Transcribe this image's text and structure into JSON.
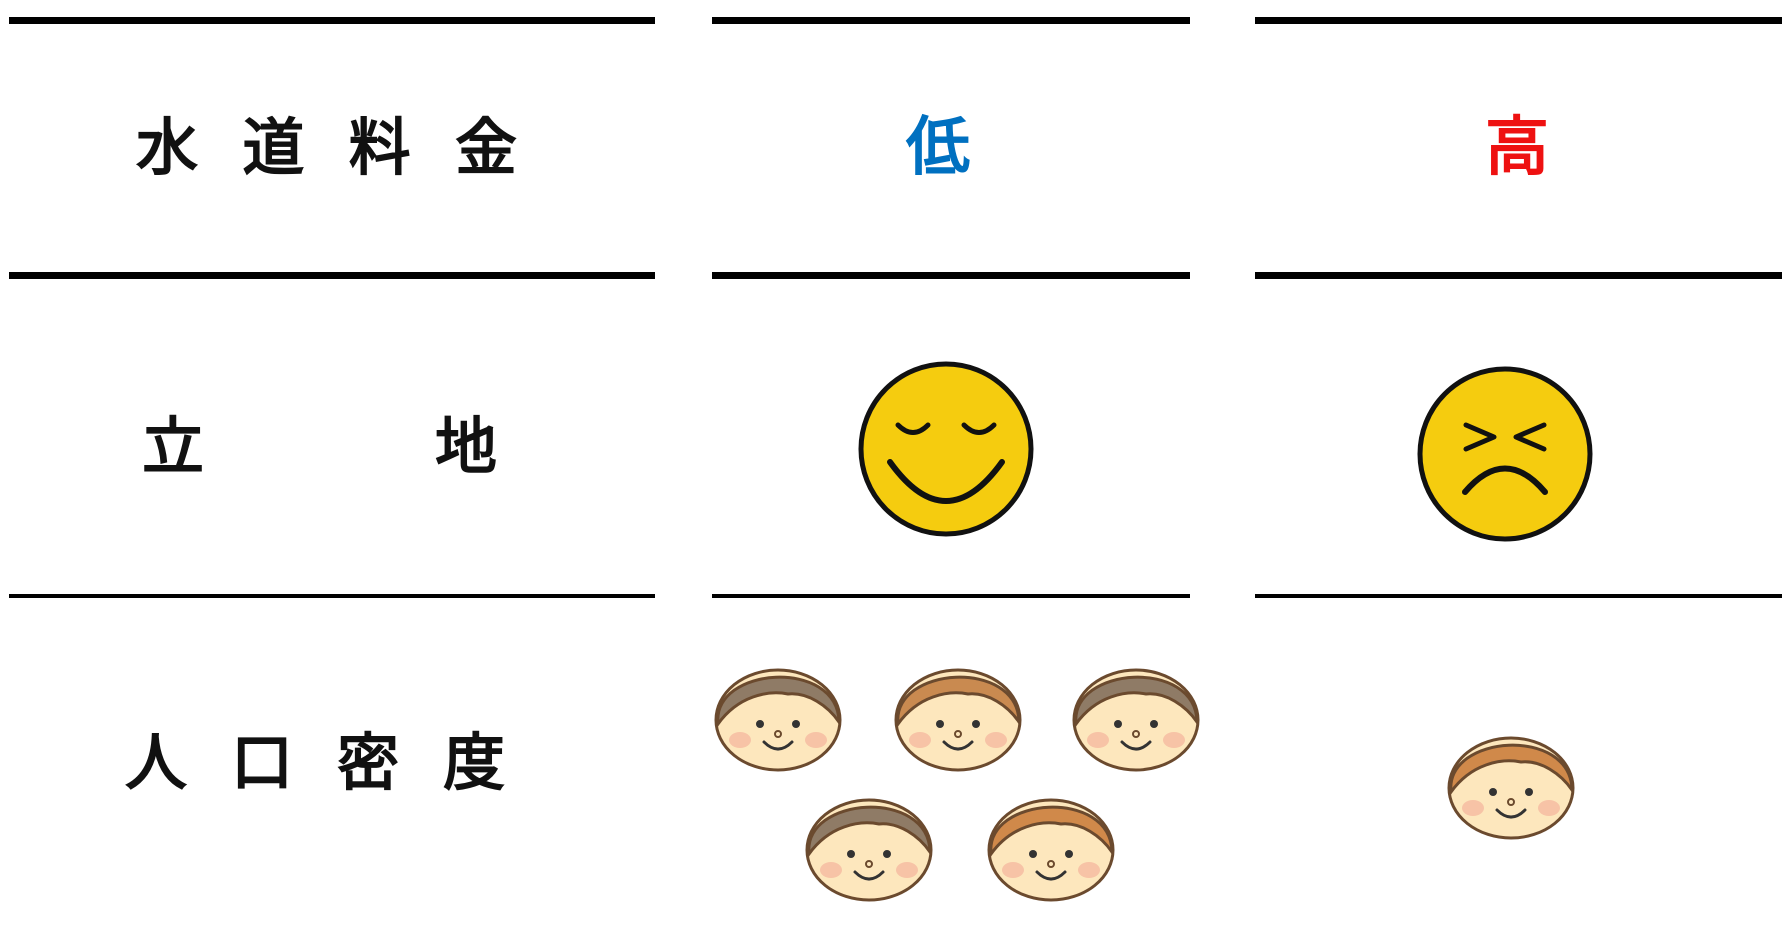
{
  "rows": [
    {
      "label": "水道料金",
      "cells": [
        "低",
        "高"
      ]
    },
    {
      "label": "立地"
    },
    {
      "label": "人口密度"
    }
  ]
}
